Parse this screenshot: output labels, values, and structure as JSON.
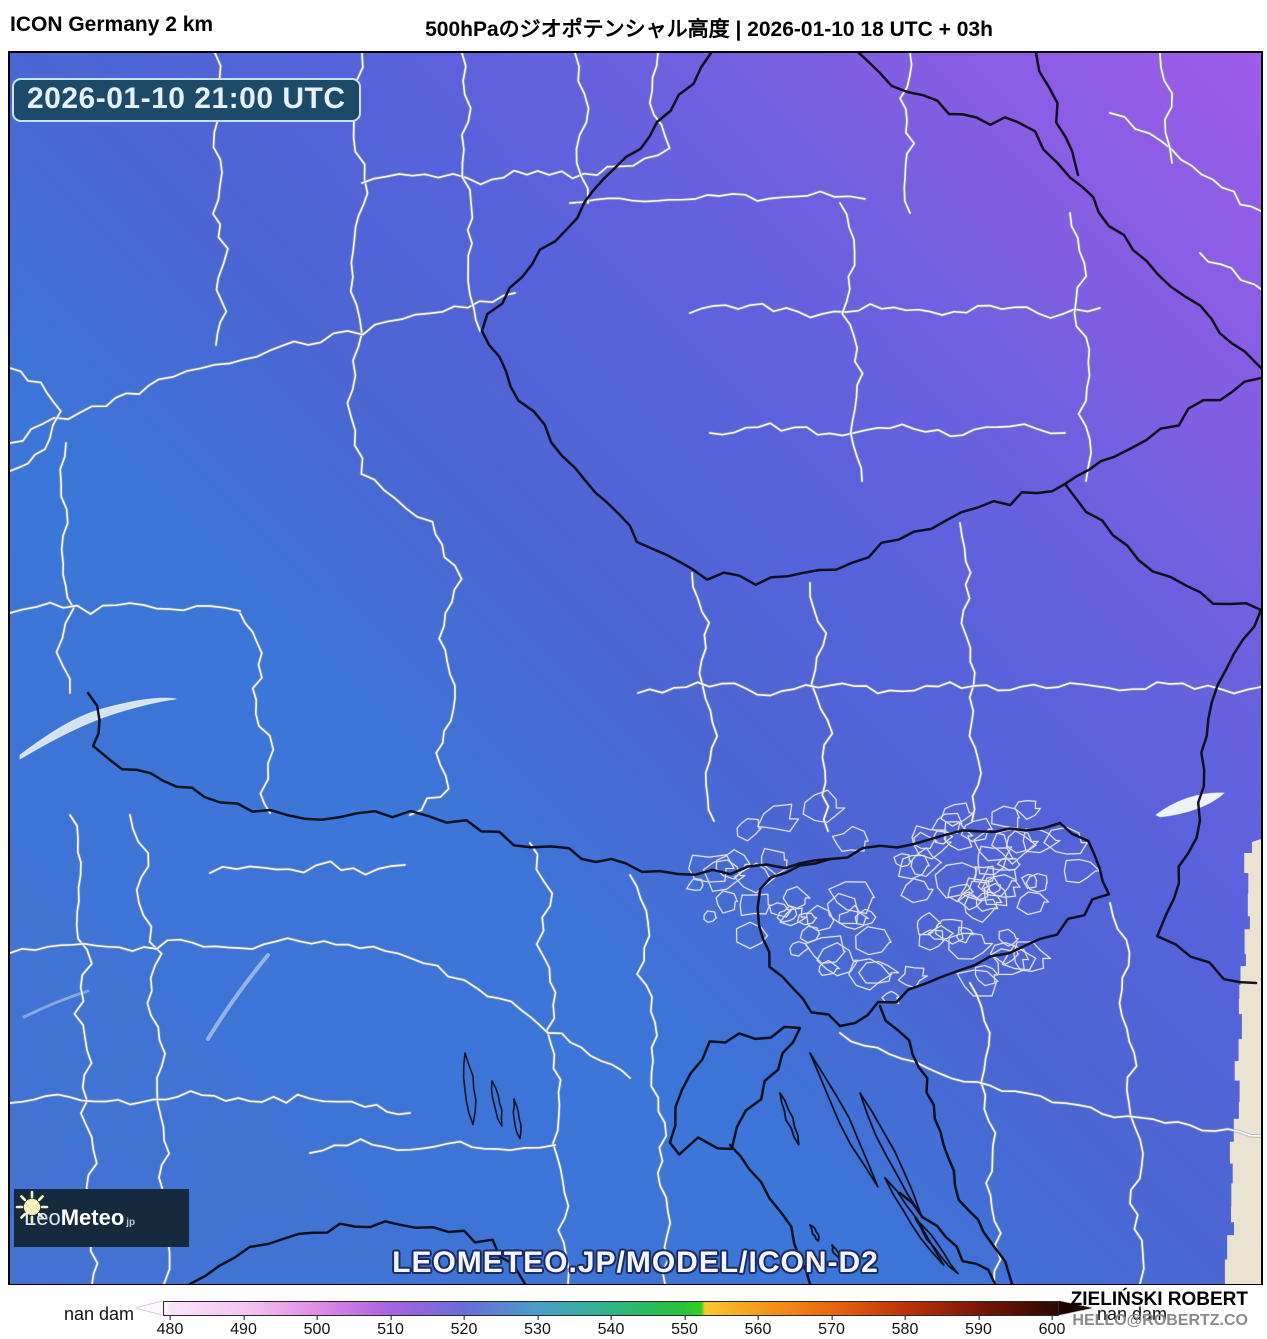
{
  "header": {
    "app_title": "ICON Germany 2 km",
    "chart_title": "500hPaのジオポテンシャル高度 | 2026-01-10 18 UTC + 03h"
  },
  "map": {
    "timestamp_badge": "2026-01-10 21:00 UTC",
    "watermark": "LEOMETEO.JP/MODEL/ICON-D2",
    "logo": {
      "prefix": "Leo",
      "bold": "Meteo",
      "tld": "jp"
    },
    "field_colors": {
      "lower_left_blue": "#4270d4",
      "left_azure": "#3b76d8",
      "center_indigo": "#4a66d2",
      "upper_right_purple": "#9a5ce6",
      "out_of_domain_beige": "#eae3d2",
      "country_border": "#0d0d18",
      "admin_border": "#fafcff"
    },
    "badge_colors": {
      "background": "#1d4a68",
      "border": "#c9e2f0",
      "text": "#e4f2fb"
    }
  },
  "footer": {
    "unit_left": "nan dam",
    "unit_right": "nan dam",
    "ticks": [
      "480",
      "490",
      "500",
      "510",
      "520",
      "530",
      "540",
      "550",
      "560",
      "570",
      "580",
      "590",
      "600"
    ]
  },
  "credit": {
    "name": "ZIELIŃSKI ROBERT",
    "email": "HELLO@ROBERTZ.CO"
  },
  "chart_data": {
    "type": "heatmap",
    "title": "500hPaのジオポテンシャル高度 | 2026-01-10 18 UTC + 03h",
    "model": "ICON Germany 2 km",
    "valid_time": "2026-01-10 21:00 UTC",
    "unit": "dam",
    "colorbar_ticks": [
      480,
      490,
      500,
      510,
      520,
      530,
      540,
      550,
      560,
      570,
      580,
      590,
      600
    ],
    "colorbar_colors": [
      "#f9e4f9",
      "#f4c6f2",
      "#e08ae6",
      "#a763e0",
      "#6a6ed8",
      "#499dc9",
      "#2fb487",
      "#27c337",
      "#f69d1c",
      "#e8680f",
      "#bd3408",
      "#7a1806",
      "#330904"
    ],
    "field_gradient": "values increase from lower-left (blue, ~520 dam) to upper-right (purple, ~512 dam equivalent shading)",
    "legend_position": "bottom"
  }
}
